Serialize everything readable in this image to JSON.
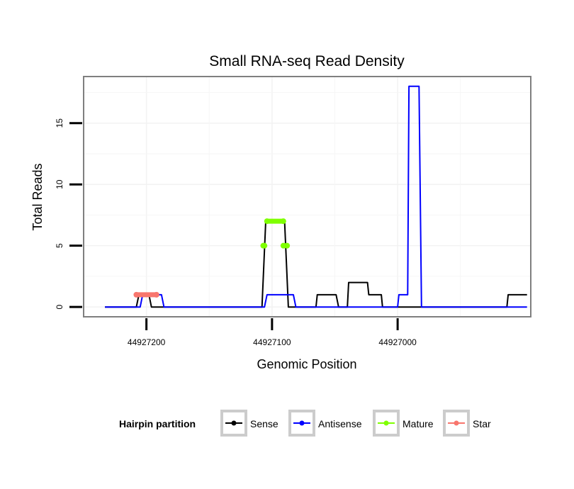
{
  "chart_data": {
    "type": "line",
    "title": "Small RNA-seq Read Density",
    "xlabel": "Genomic Position",
    "ylabel": "Total Reads",
    "x_reversed": true,
    "xlim": [
      44927250,
      44926894
    ],
    "ylim": [
      -0.8,
      18.8
    ],
    "x_ticks": [
      44927200,
      44927100,
      44927000
    ],
    "x_tick_labels": [
      "44927200",
      "44927100",
      "44927000"
    ],
    "y_ticks": [
      0,
      5,
      10,
      15
    ],
    "y_tick_labels": [
      "0",
      "5",
      "10",
      "15"
    ],
    "grid": true,
    "legend": {
      "title": "Hairpin partition",
      "position": "bottom",
      "entries": [
        {
          "label": "Sense",
          "color": "#000000"
        },
        {
          "label": "Antisense",
          "color": "#0000ff"
        },
        {
          "label": "Mature",
          "color": "#7fff00"
        },
        {
          "label": "Star",
          "color": "#f8766d"
        }
      ]
    },
    "series": [
      {
        "name": "Sense",
        "kind": "line",
        "color": "#000000",
        "x": [
          44927233,
          44927208,
          44927206,
          44927198,
          44927196,
          44927108,
          44927105,
          44927090,
          44927087,
          44927065,
          44927064,
          44927049,
          44927047,
          44927040,
          44927039,
          44927024,
          44927023,
          44927013,
          44927012,
          44926913,
          44926912,
          44926897
        ],
        "y": [
          0,
          0,
          1,
          1,
          0,
          0,
          7,
          7,
          0,
          0,
          1,
          1,
          0,
          0,
          2,
          2,
          1,
          1,
          0,
          0,
          1,
          1
        ]
      },
      {
        "name": "Antisense",
        "kind": "line",
        "color": "#0000ff",
        "x": [
          44927233,
          44927205,
          44927203,
          44927188,
          44927186,
          44927106,
          44927104,
          44927083,
          44927081,
          44927000,
          44926999,
          44926992,
          44926991,
          44926983,
          44926981,
          44926897
        ],
        "y": [
          0,
          0,
          1,
          1,
          0,
          0,
          1,
          1,
          0,
          0,
          1,
          1,
          18,
          18,
          0,
          0
        ]
      },
      {
        "name": "Mature",
        "kind": "segments",
        "color": "#7fff00",
        "segments": [
          {
            "x": [
              44927104,
              44927091
            ],
            "y": [
              7,
              7
            ]
          },
          {
            "x": [
              44927107,
              44927106
            ],
            "y": [
              5,
              5
            ]
          },
          {
            "x": [
              44927091,
              44927088
            ],
            "y": [
              5,
              5
            ]
          }
        ]
      },
      {
        "name": "Star",
        "kind": "segments",
        "color": "#f8766d",
        "segments": [
          {
            "x": [
              44927208,
              44927192
            ],
            "y": [
              1,
              1
            ]
          }
        ]
      }
    ]
  }
}
